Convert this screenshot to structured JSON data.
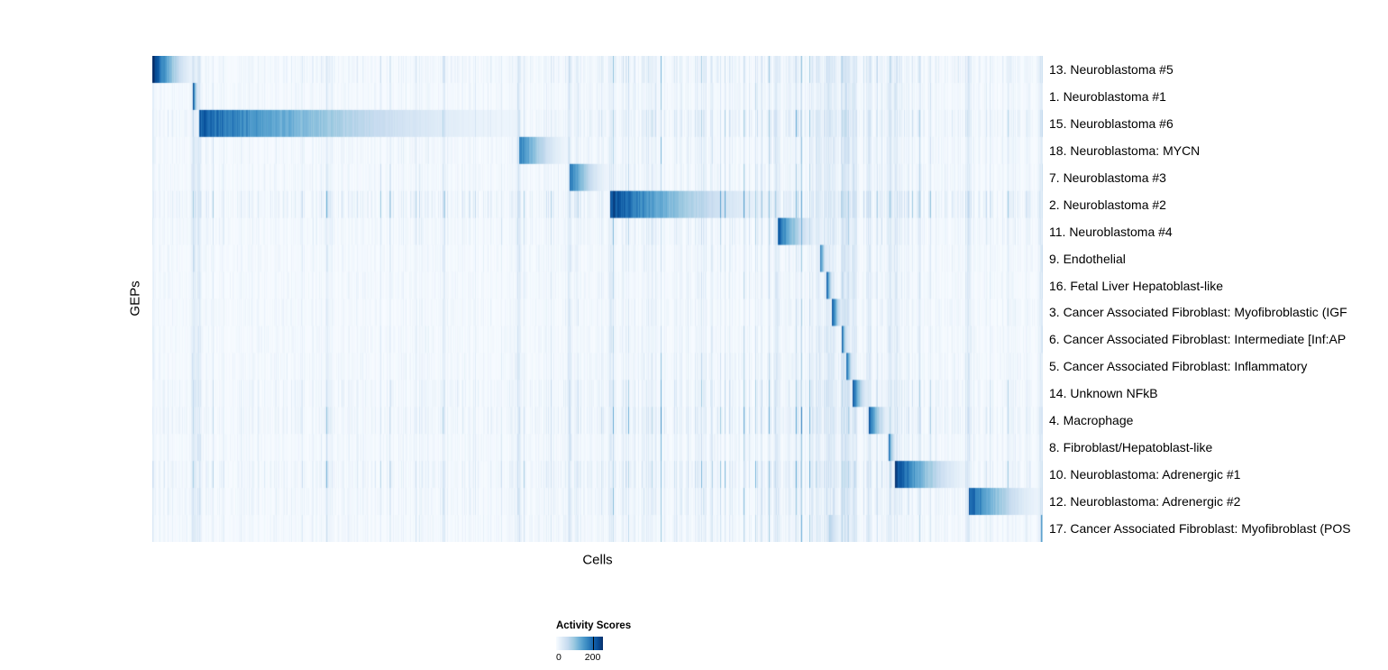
{
  "chart_data": {
    "type": "heatmap",
    "xlabel": "Cells",
    "ylabel": "GEPs",
    "legend": {
      "title": "Activity Scores",
      "min_label": "0",
      "max_label": "200",
      "max_label_pos": 0.78
    },
    "value_domain": [
      0,
      256
    ],
    "grid": false,
    "colormap": [
      "#f7fbff",
      "#deebf7",
      "#c6dbef",
      "#9ecae1",
      "#6baed6",
      "#4292c6",
      "#2171b5",
      "#08519c",
      "#08306b"
    ],
    "noise": {
      "seed": 1337,
      "stripe_probability": 0.05
    },
    "rows": [
      {
        "label": "13. Neuroblastoma #5",
        "blocks": [
          {
            "start": 0.0,
            "end": 0.047,
            "peak": 1.0
          }
        ],
        "noise_mult": 1.2
      },
      {
        "label": "1. Neuroblastoma #1",
        "blocks": [
          {
            "start": 0.045,
            "end": 0.052,
            "peak": 0.95
          }
        ],
        "noise_mult": 0.85
      },
      {
        "label": "15. Neuroblastoma #6",
        "blocks": [
          {
            "start": 0.052,
            "end": 0.411,
            "peak": 0.82
          }
        ],
        "noise_mult": 1.4
      },
      {
        "label": "18. Neuroblastoma: MYCN",
        "blocks": [
          {
            "start": 0.411,
            "end": 0.468,
            "peak": 0.72
          }
        ],
        "noise_mult": 0.9
      },
      {
        "label": "7. Neuroblastoma #3",
        "blocks": [
          {
            "start": 0.468,
            "end": 0.514,
            "peak": 0.72
          }
        ],
        "noise_mult": 0.9
      },
      {
        "label": "2. Neuroblastoma #2",
        "blocks": [
          {
            "start": 0.514,
            "end": 0.702,
            "peak": 0.9
          }
        ],
        "noise_mult": 1.9
      },
      {
        "label": "11. Neuroblastoma #4",
        "blocks": [
          {
            "start": 0.702,
            "end": 0.749,
            "peak": 0.82
          }
        ],
        "noise_mult": 1.0
      },
      {
        "label": "9. Endothelial",
        "blocks": [
          {
            "start": 0.749,
            "end": 0.758,
            "peak": 0.85
          }
        ],
        "noise_mult": 0.7
      },
      {
        "label": "16. Fetal Liver Hepatoblast-like",
        "blocks": [
          {
            "start": 0.757,
            "end": 0.765,
            "peak": 0.85
          }
        ],
        "noise_mult": 0.7
      },
      {
        "label": "3. Cancer Associated Fibroblast: Myofibroblastic (IGF",
        "blocks": [
          {
            "start": 0.763,
            "end": 0.776,
            "peak": 0.88
          }
        ],
        "noise_mult": 0.7
      },
      {
        "label": "6. Cancer Associated Fibroblast: Intermediate [Inf:AP",
        "blocks": [
          {
            "start": 0.774,
            "end": 0.781,
            "peak": 0.85
          }
        ],
        "noise_mult": 0.7
      },
      {
        "label": "5. Cancer Associated Fibroblast: Inflammatory",
        "blocks": [
          {
            "start": 0.779,
            "end": 0.788,
            "peak": 0.85
          }
        ],
        "noise_mult": 0.8
      },
      {
        "label": "14. Unknown NFkB",
        "blocks": [
          {
            "start": 0.786,
            "end": 0.805,
            "peak": 0.85
          }
        ],
        "noise_mult": 1.2
      },
      {
        "label": "4. Macrophage",
        "blocks": [
          {
            "start": 0.804,
            "end": 0.828,
            "peak": 0.85
          }
        ],
        "noise_mult": 1.4
      },
      {
        "label": "8. Fibroblast/Hepatoblast-like",
        "blocks": [
          {
            "start": 0.826,
            "end": 0.835,
            "peak": 0.85
          }
        ],
        "noise_mult": 0.9
      },
      {
        "label": "10. Neuroblastoma: Adrenergic #1",
        "blocks": [
          {
            "start": 0.834,
            "end": 0.916,
            "peak": 0.95
          }
        ],
        "noise_mult": 1.5
      },
      {
        "label": "12. Neuroblastoma: Adrenergic #2",
        "blocks": [
          {
            "start": 0.916,
            "end": 1.0,
            "peak": 0.85
          }
        ],
        "noise_mult": 1.1
      },
      {
        "label": "17. Cancer Associated Fibroblast: Myofibroblast (POS",
        "blocks": [
          {
            "start": 0.76,
            "end": 0.778,
            "peak": 0.3
          },
          {
            "start": 0.997,
            "end": 1.001,
            "peak": 0.92
          }
        ],
        "noise_mult": 0.9
      }
    ]
  }
}
